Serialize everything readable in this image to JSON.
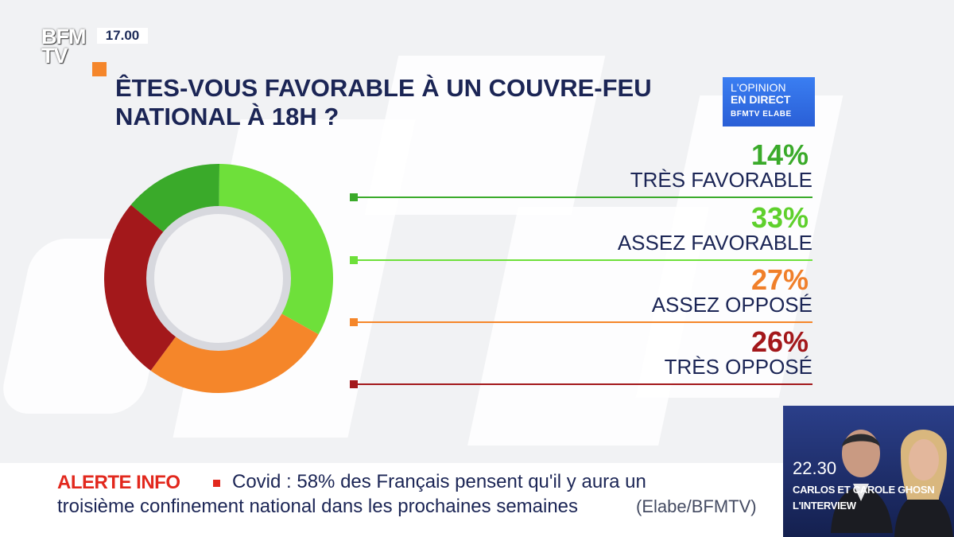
{
  "channel": {
    "logo": "BFM TV",
    "time": "17.00"
  },
  "question": "ÊTES-VOUS FAVORABLE À UN COUVRE-FEU NATIONAL À 18H ?",
  "badge": {
    "line1": "L'OPINION",
    "line2": "EN DIRECT",
    "line3": "BFMTV ELABE"
  },
  "chart_data": {
    "type": "pie",
    "variant": "donut",
    "title": "ÊTES-VOUS FAVORABLE À UN COUVRE-FEU NATIONAL À 18H ?",
    "slices": [
      {
        "label": "TRÈS FAVORABLE",
        "value": 14,
        "display": "14%",
        "color": "#3aaa2a"
      },
      {
        "label": "ASSEZ FAVORABLE",
        "value": 33,
        "display": "33%",
        "color": "#6ee03a"
      },
      {
        "label": "ASSEZ OPPOSÉ",
        "value": 27,
        "display": "27%",
        "color": "#f5862a"
      },
      {
        "label": "TRÈS OPPOSÉ",
        "value": 26,
        "display": "26%",
        "color": "#a3181b"
      }
    ],
    "pct_colors": [
      "#3aaa2a",
      "#5ed02c",
      "#f07f2a",
      "#a3181b"
    ]
  },
  "ticker": {
    "alert_label": "ALERTE INFO",
    "line1": "Covid : 58% des Français pensent qu'il y aura un",
    "line2": "troisième confinement national dans les prochaines semaines",
    "source": "(Elabe/BFMTV)"
  },
  "program": {
    "time": "22.30",
    "title1": "CARLOS ET CAROLE GHOSN",
    "title2": "L'INTERVIEW"
  }
}
